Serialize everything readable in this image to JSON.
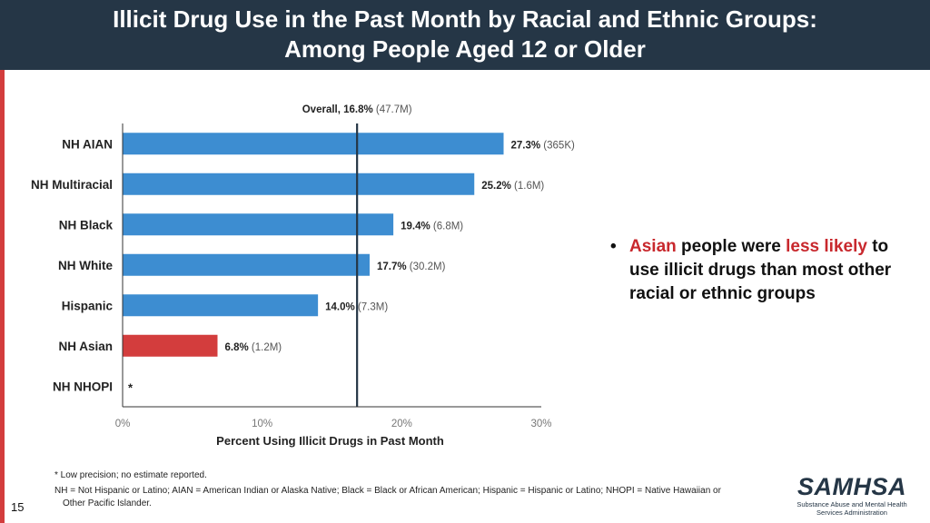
{
  "header": {
    "title_line1": "Illicit Drug Use in the Past Month by Racial and Ethnic Groups:",
    "title_line2": "Among People Aged 12 or Older"
  },
  "colors": {
    "bar": "#3d8dd1",
    "highlight": "#d33d3d",
    "header_bg": "#253646",
    "accent": "#c8282d"
  },
  "chart_data": {
    "type": "bar",
    "orientation": "horizontal",
    "categories": [
      "NH AIAN",
      "NH Multiracial",
      "NH Black",
      "NH White",
      "Hispanic",
      "NH Asian",
      "NH NHOPI"
    ],
    "values": [
      27.3,
      25.2,
      19.4,
      17.7,
      14.0,
      6.8,
      null
    ],
    "value_labels": [
      "27.3%",
      "25.2%",
      "19.4%",
      "17.7%",
      "14.0%",
      "6.8%",
      "*"
    ],
    "count_labels": [
      "(365K)",
      "(1.6M)",
      "(6.8M)",
      "(30.2M)",
      "(7.3M)",
      "(1.2M)",
      ""
    ],
    "highlight_index": 5,
    "reference_line": {
      "value": 16.8,
      "label": "Overall, 16.8%",
      "count": "(47.7M)"
    },
    "xlabel": "Percent Using Illicit Drugs in Past Month",
    "xticks": [
      "0%",
      "10%",
      "20%",
      "30%"
    ],
    "xtick_values": [
      0,
      10,
      20,
      30
    ],
    "xlim": [
      0,
      30
    ],
    "grid": false
  },
  "bullet": {
    "dot": "•",
    "part1": "Asian",
    "part2": " people were ",
    "part3": "less likely",
    "part4": " to use illicit drugs than most other racial or ethnic groups"
  },
  "footnotes": {
    "line1": "* Low precision; no estimate reported.",
    "line2": "NH = Not Hispanic or Latino; AIAN = American Indian or Alaska Native; Black = Black or African American; Hispanic = Hispanic or Latino; NHOPI = Native Hawaiian or",
    "line3": "Other Pacific Islander."
  },
  "page_number": "15",
  "logo": {
    "word": "SAMHSA",
    "sub1": "Substance Abuse and Mental Health",
    "sub2": "Services Administration"
  }
}
